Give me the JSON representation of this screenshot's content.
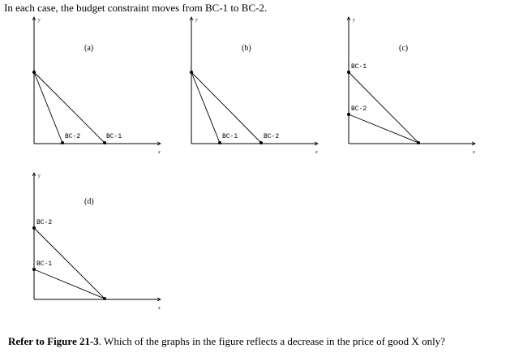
{
  "intro": "In each case, the budget constraint moves from BC-1 to BC-2.",
  "question": {
    "bold": "Refer to Figure 21-3",
    "rest": ". Which of the graphs in the figure reflects a decrease in the price of good X only?"
  },
  "axes": {
    "x": "x",
    "y": "y"
  },
  "panels": [
    {
      "id": "a",
      "label": "(a)",
      "bc1_label": "BC-1",
      "bc2_label": "BC-2"
    },
    {
      "id": "b",
      "label": "(b)",
      "bc1_label": "BC-1",
      "bc2_label": "BC-2"
    },
    {
      "id": "c",
      "label": "(c)",
      "bc1_label": "BC-1",
      "bc2_label": "BC-2"
    },
    {
      "id": "d",
      "label": "(d)",
      "bc1_label": "BC-2",
      "bc2_label": "BC-1"
    }
  ]
}
